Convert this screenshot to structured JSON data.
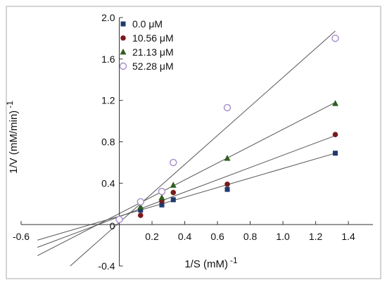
{
  "chart_data": {
    "type": "scatter",
    "title": "",
    "xlabel": "1/S (mM)",
    "xlabel_exp": "-1",
    "ylabel": "1/V (mM/min)",
    "ylabel_exp": "-1",
    "xlim": [
      -0.6,
      1.55
    ],
    "ylim": [
      -0.4,
      2.0
    ],
    "x_ticks": [
      -0.6,
      0.2,
      0.4,
      0.6,
      0.8,
      1.0,
      1.2,
      1.4
    ],
    "x_tick_labels": [
      "-0.6",
      "0.2",
      "0.4",
      "0.6",
      "0.8",
      "1.0",
      "1.2",
      "1.4"
    ],
    "zero_label": "0",
    "y_ticks": [
      -0.4,
      0.4,
      0.8,
      1.2,
      1.6,
      2.0
    ],
    "y_tick_labels": [
      "-0.4",
      "0.4",
      "0.8",
      "1.2",
      "1.6",
      "2.0"
    ],
    "grid": false,
    "legend_position": "top-left",
    "series": [
      {
        "name": "0.0 μM",
        "marker": "square",
        "color": "#1f3a6e",
        "x": [
          0.13,
          0.26,
          0.33,
          0.66,
          1.32
        ],
        "y": [
          0.14,
          0.19,
          0.24,
          0.34,
          0.69
        ],
        "line": {
          "x": [
            -0.5,
            1.32
          ],
          "y": [
            -0.15,
            0.69
          ]
        }
      },
      {
        "name": "10.56 μM",
        "marker": "circle",
        "color": "#7a1a1a",
        "x": [
          0.13,
          0.26,
          0.33,
          0.66,
          1.32
        ],
        "y": [
          0.09,
          0.23,
          0.31,
          0.39,
          0.87
        ],
        "line": {
          "x": [
            -0.5,
            1.32
          ],
          "y": [
            -0.22,
            0.86
          ]
        }
      },
      {
        "name": "21.13 μM",
        "marker": "triangle",
        "color": "#2e5e1e",
        "x": [
          0.13,
          0.26,
          0.33,
          0.66,
          1.32
        ],
        "y": [
          0.17,
          0.26,
          0.38,
          0.64,
          1.17
        ],
        "line": {
          "x": [
            -0.5,
            1.32
          ],
          "y": [
            -0.3,
            1.18
          ]
        }
      },
      {
        "name": "52.28 μM",
        "marker": "open-circle",
        "color": "#a58cc9",
        "x": [
          0.0,
          0.13,
          0.26,
          0.33,
          0.66,
          1.32
        ],
        "y": [
          0.05,
          0.22,
          0.32,
          0.6,
          1.13,
          1.8
        ],
        "line": {
          "x": [
            -0.3,
            1.32
          ],
          "y": [
            -0.4,
            1.87
          ]
        }
      }
    ]
  }
}
